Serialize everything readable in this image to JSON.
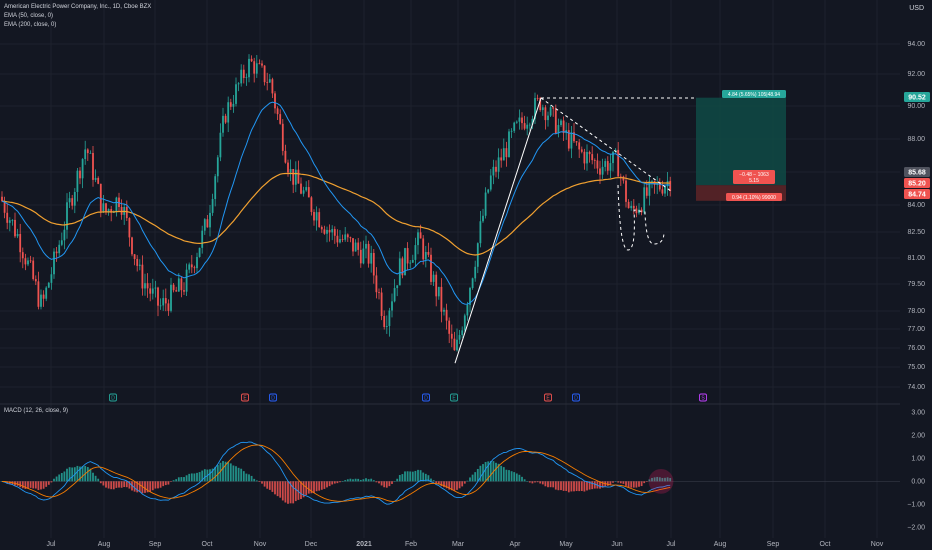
{
  "legend": {
    "title": "American Electric Power Company, Inc., 1D, Cboe BZX",
    "ema50": "EMA (50, close, 0)",
    "ema200": "EMA (200, close, 0)",
    "macd": "MACD (12, 26, close, 9)"
  },
  "currency": "USD",
  "colors": {
    "background": "#131722",
    "up": "#26a69a",
    "down": "#ef5350",
    "ema50": "#2196f3",
    "ema200": "#f0a030",
    "profit_zone": "#0f4a45",
    "loss_zone": "#5a2327",
    "grid": "#1e222d"
  },
  "chart_data": {
    "type": "candlestick",
    "price_axis": {
      "range": [
        73.5,
        95.5
      ],
      "ticks": [
        "94.00",
        "92.00",
        "90.00",
        "88.00",
        "86.00",
        "84.00",
        "82.50",
        "81.00",
        "79.50",
        "78.00",
        "77.00",
        "76.00",
        "75.00",
        "74.00"
      ]
    },
    "time_axis": {
      "labels": [
        "Jul",
        "Aug",
        "Sep",
        "Oct",
        "Nov",
        "Dec",
        "2021",
        "Feb",
        "Mar",
        "Apr",
        "May",
        "Jun",
        "Jul",
        "Aug",
        "Sep",
        "Oct",
        "Nov"
      ],
      "bold": [
        "2021"
      ]
    },
    "price_labels": [
      {
        "text": "90.52",
        "color": "#26a69a"
      },
      {
        "text": "85.68",
        "color": "#50535e"
      },
      {
        "text": "85.20",
        "color": "#ef5350"
      },
      {
        "text": "84.74",
        "color": "#ef5350"
      }
    ],
    "position_tool": {
      "entry": 85.2,
      "target": 90.52,
      "stop": 84.74,
      "target_label": "4.84 (5.65%) 105|48.94",
      "current_label_1": "−0.48 − 1063",
      "current_label_2": "5.15",
      "stop_label": "0.94 (1.10%) 99000"
    },
    "macd_panel": {
      "range": [
        -2.2,
        3.1
      ],
      "ticks": [
        "3.00",
        "2.00",
        "1.00",
        "0.00",
        "−1.00",
        "−2.00"
      ]
    },
    "event_markers": [
      "D",
      "E",
      "D",
      "D",
      "E",
      "E",
      "D",
      "S"
    ]
  }
}
